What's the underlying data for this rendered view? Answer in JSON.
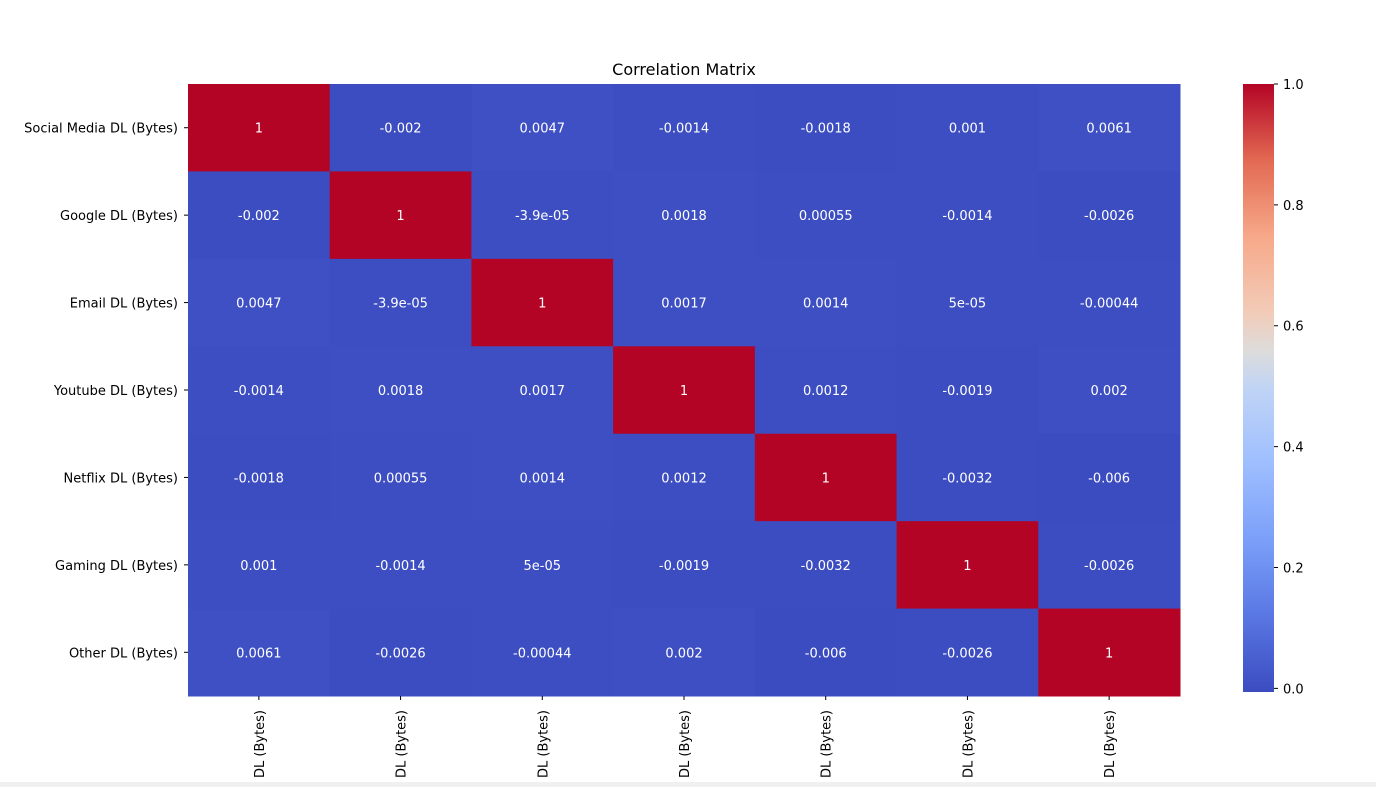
{
  "chart_data": {
    "type": "heatmap",
    "title": "Correlation Matrix",
    "row_labels": [
      "Social Media DL (Bytes)",
      "Google DL (Bytes)",
      "Email DL (Bytes)",
      "Youtube DL (Bytes)",
      "Netflix DL (Bytes)",
      "Gaming DL (Bytes)",
      "Other DL (Bytes)"
    ],
    "column_labels": [
      "DL (Bytes)",
      "DL (Bytes)",
      "DL (Bytes)",
      "DL (Bytes)",
      "DL (Bytes)",
      "DL (Bytes)",
      "DL (Bytes)"
    ],
    "values": [
      [
        1,
        -0.002,
        0.0047,
        -0.0014,
        -0.0018,
        0.001,
        0.0061
      ],
      [
        -0.002,
        1,
        -3.9e-05,
        0.0018,
        0.00055,
        -0.0014,
        -0.0026
      ],
      [
        0.0047,
        -3.9e-05,
        1,
        0.0017,
        0.0014,
        5e-05,
        -0.00044
      ],
      [
        -0.0014,
        0.0018,
        0.0017,
        1,
        0.0012,
        -0.0019,
        0.002
      ],
      [
        -0.0018,
        0.00055,
        0.0014,
        0.0012,
        1,
        -0.0032,
        -0.006
      ],
      [
        0.001,
        -0.0014,
        5e-05,
        -0.0019,
        -0.0032,
        1,
        -0.0026
      ],
      [
        0.0061,
        -0.0026,
        -0.00044,
        0.002,
        -0.006,
        -0.0026,
        1
      ]
    ],
    "annotations": [
      [
        "1",
        "-0.002",
        "0.0047",
        "-0.0014",
        "-0.0018",
        "0.001",
        "0.0061"
      ],
      [
        "-0.002",
        "1",
        "-3.9e-05",
        "0.0018",
        "0.00055",
        "-0.0014",
        "-0.0026"
      ],
      [
        "0.0047",
        "-3.9e-05",
        "1",
        "0.0017",
        "0.0014",
        "5e-05",
        "-0.00044"
      ],
      [
        "-0.0014",
        "0.0018",
        "0.0017",
        "1",
        "0.0012",
        "-0.0019",
        "0.002"
      ],
      [
        "-0.0018",
        "0.00055",
        "0.0014",
        "0.0012",
        "1",
        "-0.0032",
        "-0.006"
      ],
      [
        "0.001",
        "-0.0014",
        "5e-05",
        "-0.0019",
        "-0.0032",
        "1",
        "-0.0026"
      ],
      [
        "0.0061",
        "-0.0026",
        "-0.00044",
        "0.002",
        "-0.006",
        "-0.0026",
        "1"
      ]
    ],
    "colormap": "coolwarm",
    "colorbar": {
      "range": [
        -0.006,
        1
      ],
      "ticks": [
        0.0,
        0.2,
        0.4,
        0.6,
        0.8,
        1.0
      ],
      "tick_labels": [
        "0.0",
        "0.2",
        "0.4",
        "0.6",
        "0.8",
        "1.0"
      ]
    },
    "colors": {
      "low": "#3b4cc0",
      "mid": "#dddcdc",
      "high": "#b40426",
      "annotation_text": "#ffffff"
    }
  }
}
